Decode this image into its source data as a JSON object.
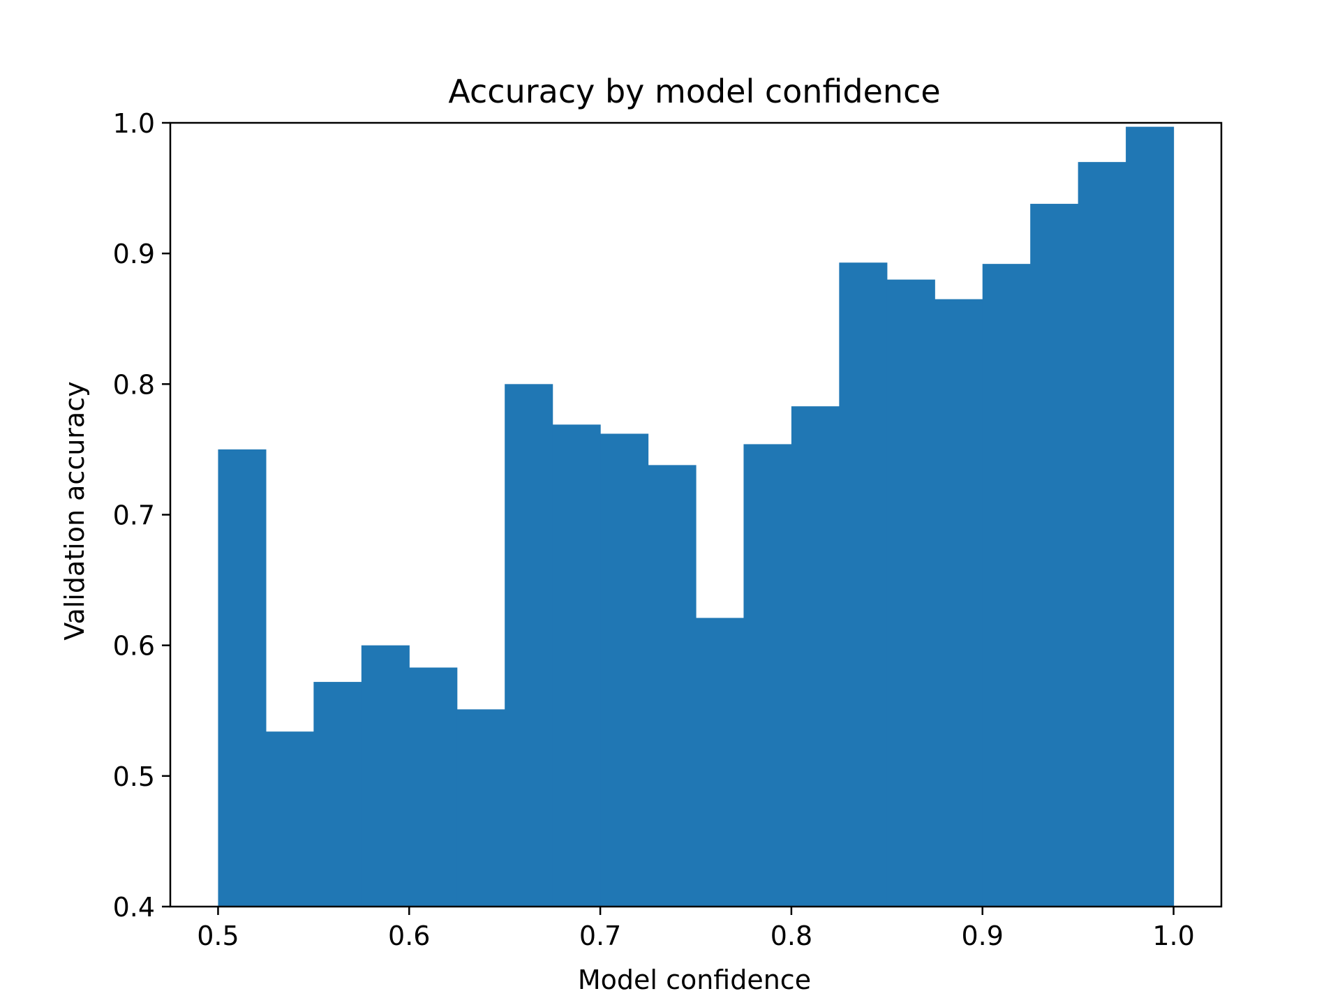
{
  "chart_data": {
    "type": "bar",
    "title": "Accuracy by model confidence",
    "xlabel": "Model confidence",
    "ylabel": "Validation accuracy",
    "xlim": [
      0.475,
      1.025
    ],
    "ylim": [
      0.4,
      1.0
    ],
    "grid": false,
    "bin_width": 0.025,
    "bins": [
      {
        "left": 0.5,
        "value": 0.75
      },
      {
        "left": 0.525,
        "value": 0.534
      },
      {
        "left": 0.55,
        "value": 0.572
      },
      {
        "left": 0.575,
        "value": 0.6
      },
      {
        "left": 0.6,
        "value": 0.583
      },
      {
        "left": 0.625,
        "value": 0.551
      },
      {
        "left": 0.65,
        "value": 0.8
      },
      {
        "left": 0.675,
        "value": 0.769
      },
      {
        "left": 0.7,
        "value": 0.762
      },
      {
        "left": 0.725,
        "value": 0.738
      },
      {
        "left": 0.75,
        "value": 0.621
      },
      {
        "left": 0.775,
        "value": 0.754
      },
      {
        "left": 0.8,
        "value": 0.783
      },
      {
        "left": 0.825,
        "value": 0.893
      },
      {
        "left": 0.85,
        "value": 0.88
      },
      {
        "left": 0.875,
        "value": 0.865
      },
      {
        "left": 0.9,
        "value": 0.892
      },
      {
        "left": 0.925,
        "value": 0.938
      },
      {
        "left": 0.95,
        "value": 0.97
      },
      {
        "left": 0.975,
        "value": 0.997
      }
    ],
    "xticks": [
      0.5,
      0.6,
      0.7,
      0.8,
      0.9,
      1.0
    ],
    "xtick_labels": [
      "0.5",
      "0.6",
      "0.7",
      "0.8",
      "0.9",
      "1.0"
    ],
    "yticks": [
      0.4,
      0.5,
      0.6,
      0.7,
      0.8,
      0.9,
      1.0
    ],
    "ytick_labels": [
      "0.4",
      "0.5",
      "0.6",
      "0.7",
      "0.8",
      "0.9",
      "1.0"
    ],
    "bar_color": "#2077b4",
    "axis_color": "#000000"
  }
}
